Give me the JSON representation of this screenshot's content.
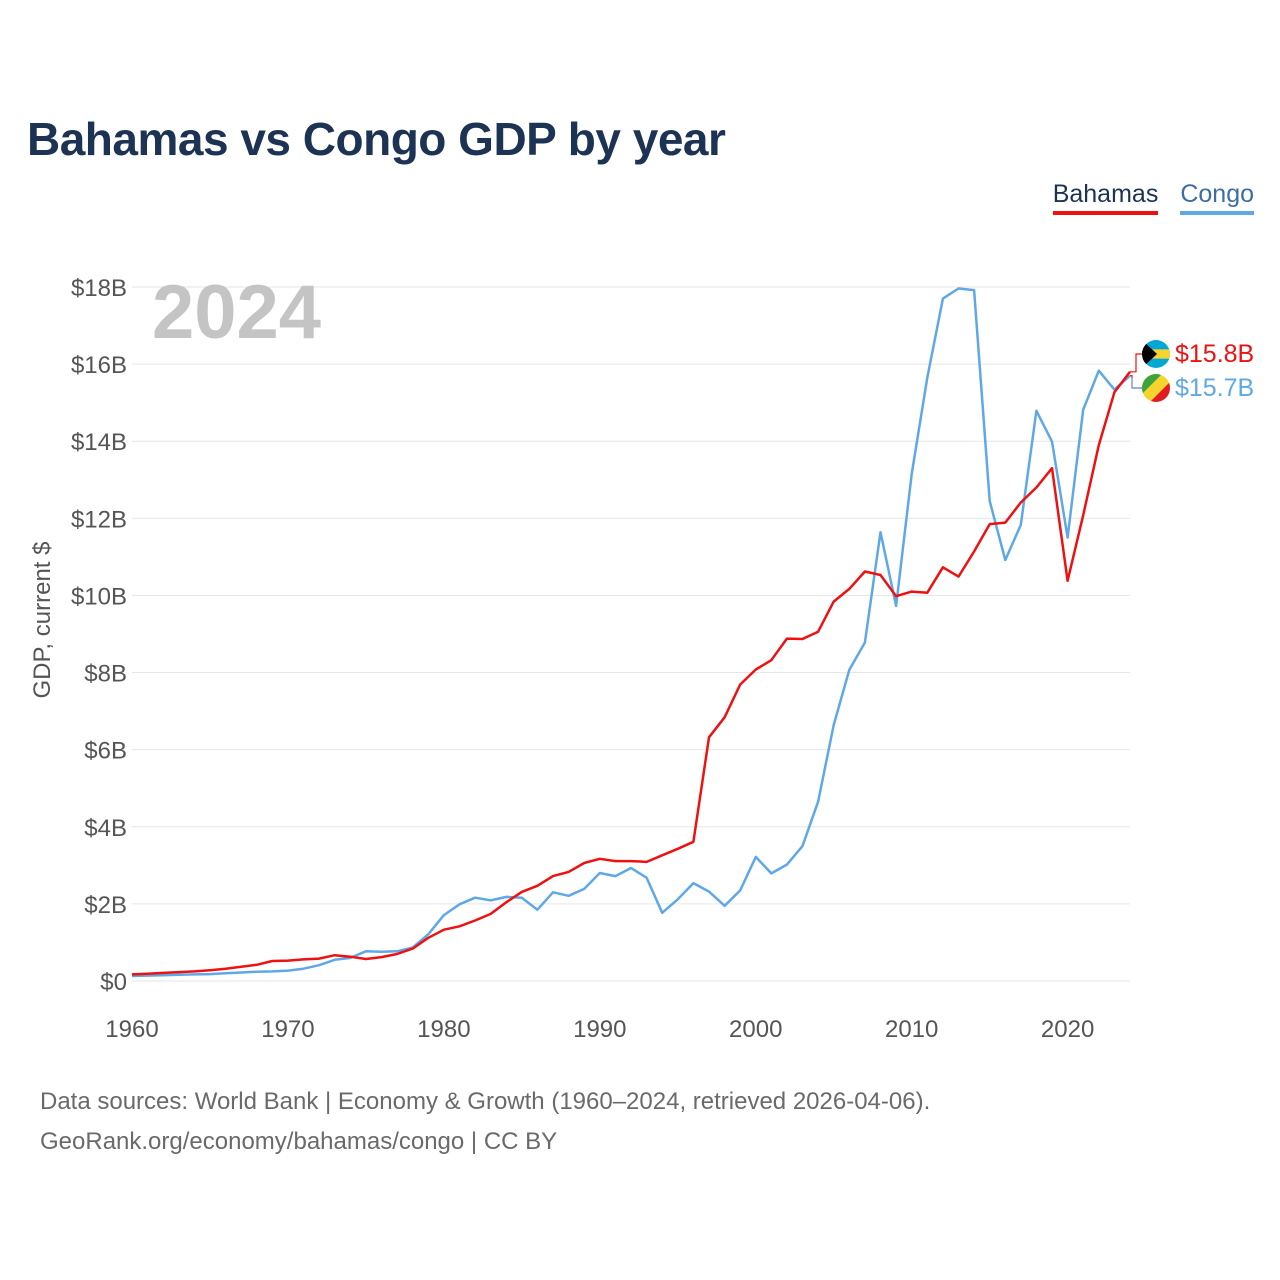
{
  "title": "Bahamas vs Congo GDP by year",
  "legend": {
    "bahamas": "Bahamas",
    "congo": "Congo"
  },
  "year_watermark": "2024",
  "end_labels": {
    "bahamas": "$15.8B",
    "congo": "$15.7B"
  },
  "footer": {
    "line1": "Data sources: World Bank | Economy & Growth (1960–2024, retrieved 2026-04-06).",
    "line2": "GeoRank.org/economy/bahamas/congo | CC BY"
  },
  "colors": {
    "bahamas": "#ee1111",
    "congo": "#5fa8e8",
    "grid": "#e6e6e6",
    "text": "#555555"
  },
  "chart_data": {
    "type": "line",
    "title": "Bahamas vs Congo GDP by year",
    "xlabel": "",
    "ylabel": "GDP, current $",
    "xlim": [
      1960,
      2024
    ],
    "ylim": [
      0,
      18
    ],
    "x_ticks": [
      1960,
      1970,
      1980,
      1990,
      2000,
      2010,
      2020
    ],
    "y_ticks": [
      0,
      2,
      4,
      6,
      8,
      10,
      12,
      14,
      16,
      18
    ],
    "y_tick_labels": [
      "$0",
      "$2B",
      "$4B",
      "$6B",
      "$8B",
      "$10B",
      "$12B",
      "$14B",
      "$16B",
      "$18B"
    ],
    "legend_position": "top-right",
    "x": [
      1960,
      1961,
      1962,
      1963,
      1964,
      1965,
      1966,
      1967,
      1968,
      1969,
      1970,
      1971,
      1972,
      1973,
      1974,
      1975,
      1976,
      1977,
      1978,
      1979,
      1980,
      1981,
      1982,
      1983,
      1984,
      1985,
      1986,
      1987,
      1988,
      1989,
      1990,
      1991,
      1992,
      1993,
      1994,
      1995,
      1996,
      1997,
      1998,
      1999,
      2000,
      2001,
      2002,
      2003,
      2004,
      2005,
      2006,
      2007,
      2008,
      2009,
      2010,
      2011,
      2012,
      2013,
      2014,
      2015,
      2016,
      2017,
      2018,
      2019,
      2020,
      2021,
      2022,
      2023,
      2024
    ],
    "series": [
      {
        "name": "Bahamas",
        "unit": "billion USD",
        "values": [
          0.17,
          0.19,
          0.21,
          0.23,
          0.25,
          0.28,
          0.32,
          0.37,
          0.42,
          0.52,
          0.53,
          0.56,
          0.58,
          0.67,
          0.63,
          0.57,
          0.62,
          0.7,
          0.84,
          1.12,
          1.33,
          1.42,
          1.57,
          1.74,
          2.04,
          2.31,
          2.47,
          2.72,
          2.83,
          3.06,
          3.17,
          3.11,
          3.11,
          3.09,
          3.26,
          3.43,
          3.61,
          6.32,
          6.84,
          7.69,
          8.08,
          8.32,
          8.88,
          8.87,
          9.06,
          9.84,
          10.17,
          10.62,
          10.53,
          9.98,
          10.1,
          10.07,
          10.73,
          10.49,
          11.14,
          11.85,
          11.89,
          12.41,
          12.8,
          13.3,
          10.38,
          12.08,
          13.9,
          15.27,
          15.8
        ]
      },
      {
        "name": "Congo",
        "unit": "billion USD",
        "values": [
          0.13,
          0.14,
          0.15,
          0.16,
          0.17,
          0.18,
          0.2,
          0.22,
          0.24,
          0.25,
          0.27,
          0.32,
          0.41,
          0.55,
          0.6,
          0.77,
          0.76,
          0.77,
          0.87,
          1.21,
          1.71,
          1.99,
          2.16,
          2.09,
          2.18,
          2.16,
          1.85,
          2.3,
          2.21,
          2.39,
          2.8,
          2.72,
          2.93,
          2.68,
          1.77,
          2.12,
          2.54,
          2.32,
          1.95,
          2.35,
          3.22,
          2.79,
          3.02,
          3.5,
          4.65,
          6.64,
          8.07,
          8.78,
          11.64,
          9.73,
          13.15,
          15.65,
          17.7,
          17.96,
          17.92,
          12.45,
          10.92,
          11.83,
          14.79,
          13.99,
          11.5,
          14.82,
          15.83,
          15.34,
          15.7
        ]
      }
    ]
  }
}
